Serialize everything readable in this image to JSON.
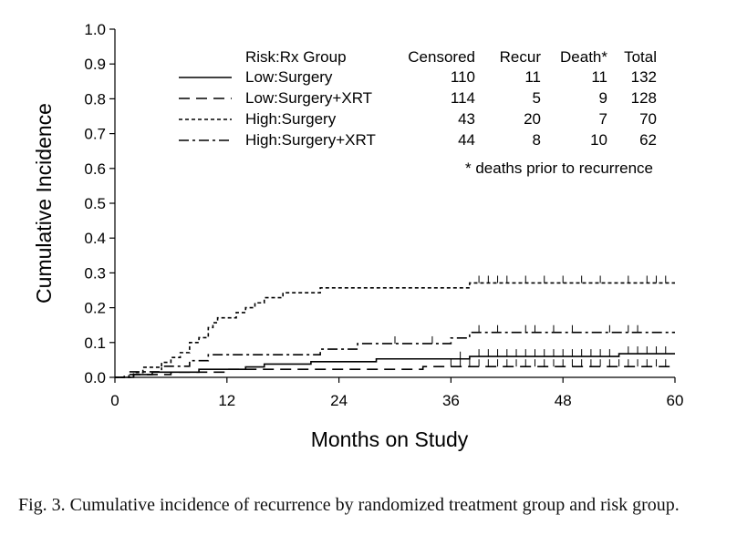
{
  "chart_data": {
    "type": "line",
    "subtype": "step",
    "xlabel": "Months on Study",
    "ylabel": "Cumulative Incidence",
    "xlim": [
      0,
      60
    ],
    "ylim": [
      0.0,
      1.0
    ],
    "xticks": [
      0,
      12,
      24,
      36,
      48,
      60
    ],
    "xtick_labels": [
      "0",
      "12",
      "24",
      "36",
      "48",
      "60"
    ],
    "yticks": [
      0.0,
      0.1,
      0.2,
      0.3,
      0.4,
      0.5,
      0.6,
      0.7,
      0.8,
      0.9,
      1.0
    ],
    "ytick_labels": [
      "0.0",
      "0.1",
      "0.2",
      "0.3",
      "0.4",
      "0.5",
      "0.6",
      "0.7",
      "0.8",
      "0.9",
      "1.0"
    ],
    "legend": {
      "headers": [
        "Risk:Rx Group",
        "Censored",
        "Recur",
        "Death*",
        "Total"
      ],
      "footnote": "* deaths prior to recurrence",
      "rows": [
        {
          "group": "Low:Surgery",
          "censored": "110",
          "recur": "11",
          "death": "11",
          "total": "132"
        },
        {
          "group": "Low:Surgery+XRT",
          "censored": "114",
          "recur": "5",
          "death": "9",
          "total": "128"
        },
        {
          "group": "High:Surgery",
          "censored": "43",
          "recur": "20",
          "death": "7",
          "total": "70"
        },
        {
          "group": "High:Surgery+XRT",
          "censored": "44",
          "recur": "8",
          "death": "10",
          "total": "62"
        }
      ]
    },
    "series": [
      {
        "name": "Low:Surgery",
        "style": "solid",
        "steps": [
          [
            0,
            0.0
          ],
          [
            2,
            0.008
          ],
          [
            4,
            0.015
          ],
          [
            9,
            0.023
          ],
          [
            14,
            0.03
          ],
          [
            16,
            0.038
          ],
          [
            21,
            0.045
          ],
          [
            28,
            0.053
          ],
          [
            38,
            0.06
          ],
          [
            54,
            0.068
          ],
          [
            60,
            0.068
          ]
        ],
        "censor_times": [
          37,
          39,
          40,
          41,
          42,
          43,
          44,
          45,
          46,
          47,
          48,
          49,
          50,
          51,
          52,
          53,
          55,
          56,
          57,
          58,
          59
        ]
      },
      {
        "name": "Low:Surgery+XRT",
        "style": "long-dash",
        "steps": [
          [
            0,
            0.0
          ],
          [
            1,
            0.008
          ],
          [
            6,
            0.015
          ],
          [
            12,
            0.023
          ],
          [
            33,
            0.031
          ],
          [
            60,
            0.031
          ]
        ],
        "censor_times": [
          36,
          37,
          38,
          39,
          40,
          41,
          42,
          43,
          44,
          45,
          46,
          47,
          48,
          49,
          50,
          51,
          52,
          53,
          54,
          55,
          56,
          57,
          58,
          59
        ]
      },
      {
        "name": "High:Surgery",
        "style": "short-dash",
        "steps": [
          [
            0,
            0.0
          ],
          [
            2,
            0.014
          ],
          [
            3,
            0.029
          ],
          [
            5,
            0.043
          ],
          [
            6,
            0.057
          ],
          [
            7,
            0.071
          ],
          [
            8,
            0.1
          ],
          [
            9,
            0.114
          ],
          [
            10,
            0.143
          ],
          [
            10.5,
            0.157
          ],
          [
            11,
            0.171
          ],
          [
            13,
            0.186
          ],
          [
            14,
            0.2
          ],
          [
            15,
            0.214
          ],
          [
            16,
            0.229
          ],
          [
            18,
            0.243
          ],
          [
            22,
            0.257
          ],
          [
            38,
            0.271
          ],
          [
            60,
            0.271
          ]
        ],
        "censor_times": [
          39,
          40,
          41,
          42,
          44,
          46,
          48,
          50,
          52,
          55,
          57,
          58,
          59
        ]
      },
      {
        "name": "High:Surgery+XRT",
        "style": "dash-dot",
        "steps": [
          [
            0,
            0.0
          ],
          [
            1.5,
            0.016
          ],
          [
            5,
            0.032
          ],
          [
            8,
            0.048
          ],
          [
            10,
            0.065
          ],
          [
            22,
            0.081
          ],
          [
            26,
            0.097
          ],
          [
            36,
            0.113
          ],
          [
            38,
            0.129
          ],
          [
            60,
            0.129
          ]
        ],
        "censor_times": [
          30,
          34,
          39,
          41,
          44,
          45,
          47,
          49,
          53,
          55,
          56
        ]
      }
    ]
  },
  "caption": "Fig. 3. Cumulative incidence of recurrence by randomized treatment group and risk group."
}
